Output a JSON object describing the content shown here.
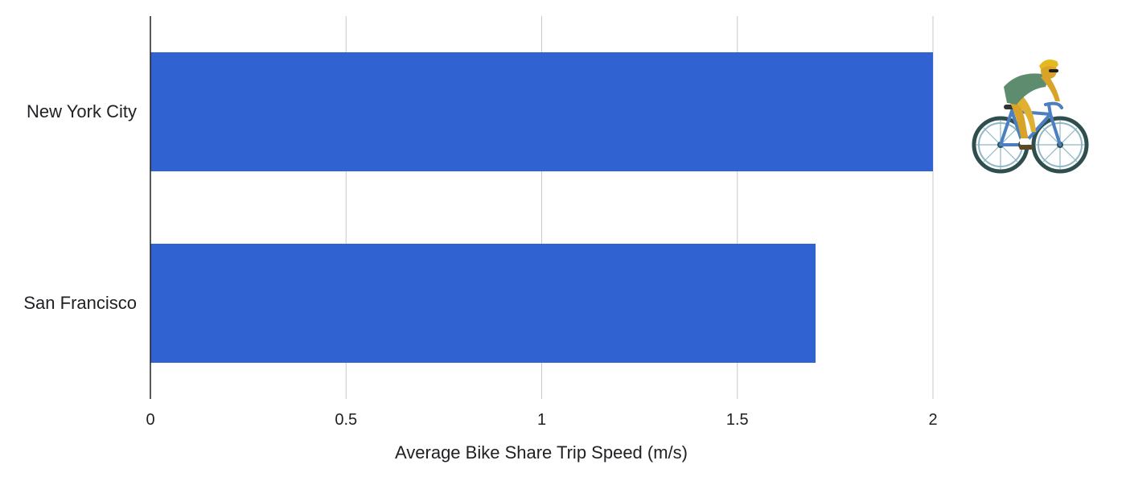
{
  "chart_data": {
    "type": "bar",
    "orientation": "horizontal",
    "categories": [
      "New York City",
      "San Francisco"
    ],
    "values": [
      2.0,
      1.7
    ],
    "title": "",
    "xlabel": "Average Bike Share Trip Speed (m/s)",
    "ylabel": "",
    "xlim": [
      0,
      2
    ],
    "xticks": [
      "0",
      "0.5",
      "1",
      "1.5",
      "2"
    ],
    "grid": true,
    "legend": "none",
    "bar_color": "#3063d1",
    "grid_color": "#c8c8c8",
    "axis_color": "#202124",
    "decoration": "cyclist-icon"
  }
}
